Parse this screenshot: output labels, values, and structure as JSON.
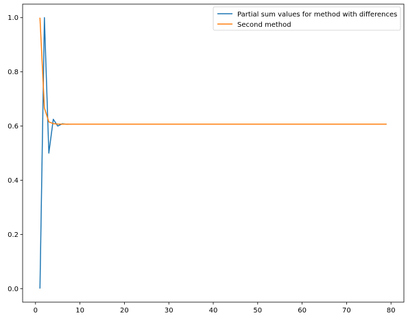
{
  "chart_data": {
    "type": "line",
    "title": "",
    "xlabel": "",
    "ylabel": "",
    "xlim": [
      -2.9,
      82.9
    ],
    "ylim": [
      -0.05,
      1.05
    ],
    "xticks": [
      0,
      10,
      20,
      30,
      40,
      50,
      60,
      70,
      80
    ],
    "yticks": [
      0.0,
      0.2,
      0.4,
      0.6,
      0.8,
      1.0
    ],
    "xtick_labels": [
      "0",
      "10",
      "20",
      "30",
      "40",
      "50",
      "60",
      "70",
      "80"
    ],
    "ytick_labels": [
      "0.0",
      "0.2",
      "0.4",
      "0.6",
      "0.8",
      "1.0"
    ],
    "grid": false,
    "legend": "top-right",
    "series": [
      {
        "name": "Partial sum values for method with differences",
        "color": "#1f77b4",
        "x": [
          1,
          2,
          3,
          4,
          5,
          6,
          7,
          8,
          9,
          10,
          79
        ],
        "y": [
          0.0,
          1.0,
          0.5,
          0.625,
          0.6,
          0.6083,
          0.6069,
          0.6071,
          0.6071,
          0.6071,
          0.6071
        ]
      },
      {
        "name": "Second method",
        "color": "#ff7f0e",
        "x": [
          1,
          2,
          3,
          4,
          5,
          6,
          7,
          8,
          9,
          10,
          79
        ],
        "y": [
          1.0,
          0.6667,
          0.6154,
          0.6087,
          0.6074,
          0.6072,
          0.6071,
          0.6071,
          0.6071,
          0.6071,
          0.6071
        ]
      }
    ]
  }
}
